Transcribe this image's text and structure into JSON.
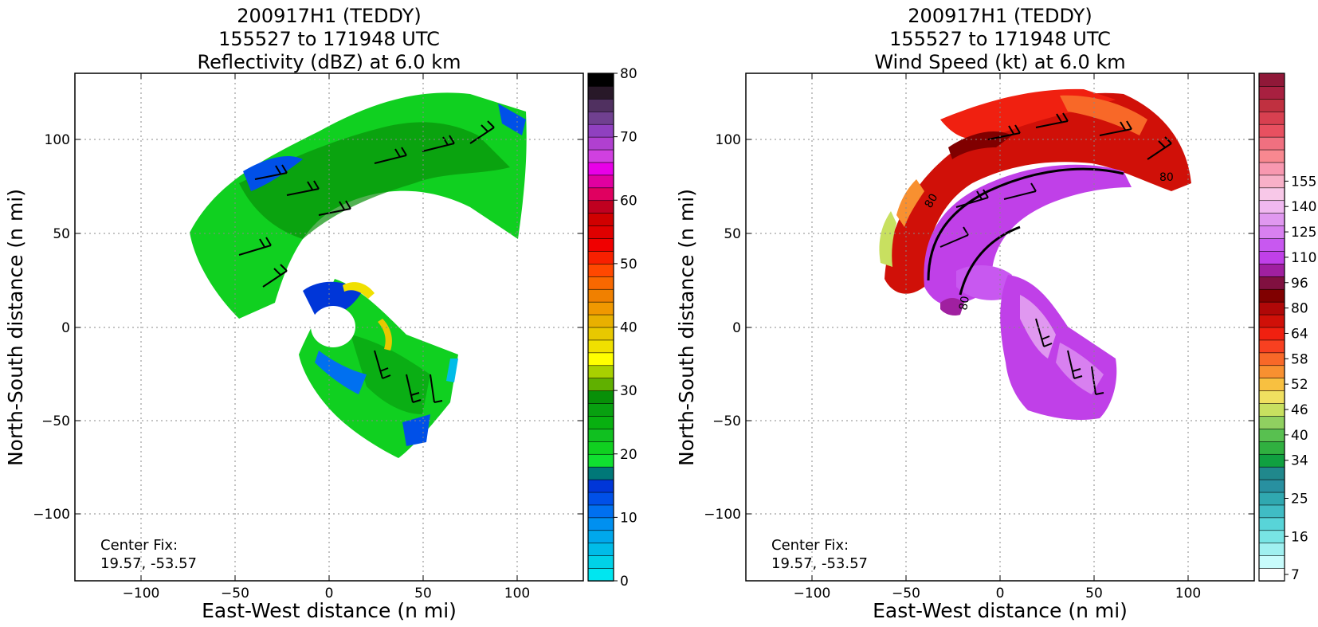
{
  "chart_data": [
    {
      "type": "heatmap",
      "panel": "reflectivity",
      "title_lines": [
        "200917H1 (TEDDY)",
        "155527 to 171948 UTC",
        "Reflectivity (dBZ) at 6.0 km"
      ],
      "xlabel": "East-West distance (n mi)",
      "ylabel": "North-South distance (n mi)",
      "xlim": [
        -135,
        135
      ],
      "ylim": [
        -135,
        135
      ],
      "xticks": [
        -100,
        -50,
        0,
        50,
        100
      ],
      "yticks": [
        -100,
        -50,
        0,
        50,
        100
      ],
      "xtick_labels": [
        "−100",
        "−50",
        "0",
        "50",
        "100"
      ],
      "ytick_labels": [
        "−100",
        "−50",
        "0",
        "50",
        "100"
      ],
      "grid": true,
      "center_fix": {
        "label": "Center Fix:",
        "value": "19.57, -53.57"
      },
      "colorbar": {
        "min": 0,
        "max": 80,
        "tick_values": [
          0,
          10,
          20,
          30,
          40,
          50,
          60,
          70,
          80
        ],
        "tick_labels": [
          "0",
          "10",
          "20",
          "30",
          "40",
          "50",
          "60",
          "70",
          "80"
        ],
        "colors": [
          "#00e6f0",
          "#00d2e8",
          "#00bce8",
          "#00a8ec",
          "#0090f0",
          "#0070f0",
          "#0050e8",
          "#0036d8",
          "#007878",
          "#10e030",
          "#10d020",
          "#10c020",
          "#08b010",
          "#08a010",
          "#089008",
          "#60b000",
          "#a8d000",
          "#ffff00",
          "#f0e000",
          "#e8c800",
          "#e8b000",
          "#f09800",
          "#f08000",
          "#f86800",
          "#ff4800",
          "#f82000",
          "#f00000",
          "#e00000",
          "#d00000",
          "#c00020",
          "#e00060",
          "#e000a0",
          "#e800e8",
          "#d040e0",
          "#b040d0",
          "#9040c0",
          "#704090",
          "#503060",
          "#281828",
          "#000000"
        ]
      }
    },
    {
      "type": "heatmap",
      "panel": "wind_speed",
      "title_lines": [
        "200917H1 (TEDDY)",
        "155527 to 171948 UTC",
        "Wind Speed (kt) at 6.0 km"
      ],
      "xlabel": "East-West distance (n mi)",
      "ylabel": "North-South distance (n mi)",
      "xlim": [
        -135,
        135
      ],
      "ylim": [
        -135,
        135
      ],
      "xticks": [
        -100,
        -50,
        0,
        50,
        100
      ],
      "yticks": [
        -100,
        -50,
        0,
        50,
        100
      ],
      "xtick_labels": [
        "−100",
        "−50",
        "0",
        "50",
        "100"
      ],
      "ytick_labels": [
        "−100",
        "−50",
        "0",
        "50",
        "100"
      ],
      "grid": true,
      "center_fix": {
        "label": "Center Fix:",
        "value": "19.57, -53.57"
      },
      "contour_label": "80",
      "colorbar": {
        "tick_labels": [
          "7",
          "16",
          "25",
          "34",
          "40",
          "46",
          "52",
          "58",
          "64",
          "80",
          "96",
          "110",
          "125",
          "140",
          "155"
        ],
        "tick_bins": [
          0,
          3,
          6,
          9,
          11,
          13,
          15,
          17,
          19,
          21,
          23,
          25,
          27,
          29,
          31
        ],
        "colors": [
          "#ffffff",
          "#c8fcfc",
          "#a0f0f0",
          "#78e4e4",
          "#58d4d8",
          "#40bcc4",
          "#30a8b0",
          "#2890a0",
          "#20888c",
          "#10a040",
          "#30b040",
          "#58c050",
          "#90d060",
          "#c8e060",
          "#f0e060",
          "#f8c040",
          "#f89030",
          "#f86828",
          "#f84020",
          "#f02010",
          "#d01008",
          "#b00808",
          "#800000",
          "#801040",
          "#a020a0",
          "#c040e8",
          "#c858f0",
          "#d880f0",
          "#e098f0",
          "#f0b8f0",
          "#f8c8e8",
          "#f8b0c8",
          "#f898b0",
          "#f88890",
          "#f07080",
          "#e85060",
          "#d84050",
          "#c03040",
          "#a82040",
          "#901838"
        ]
      }
    }
  ]
}
